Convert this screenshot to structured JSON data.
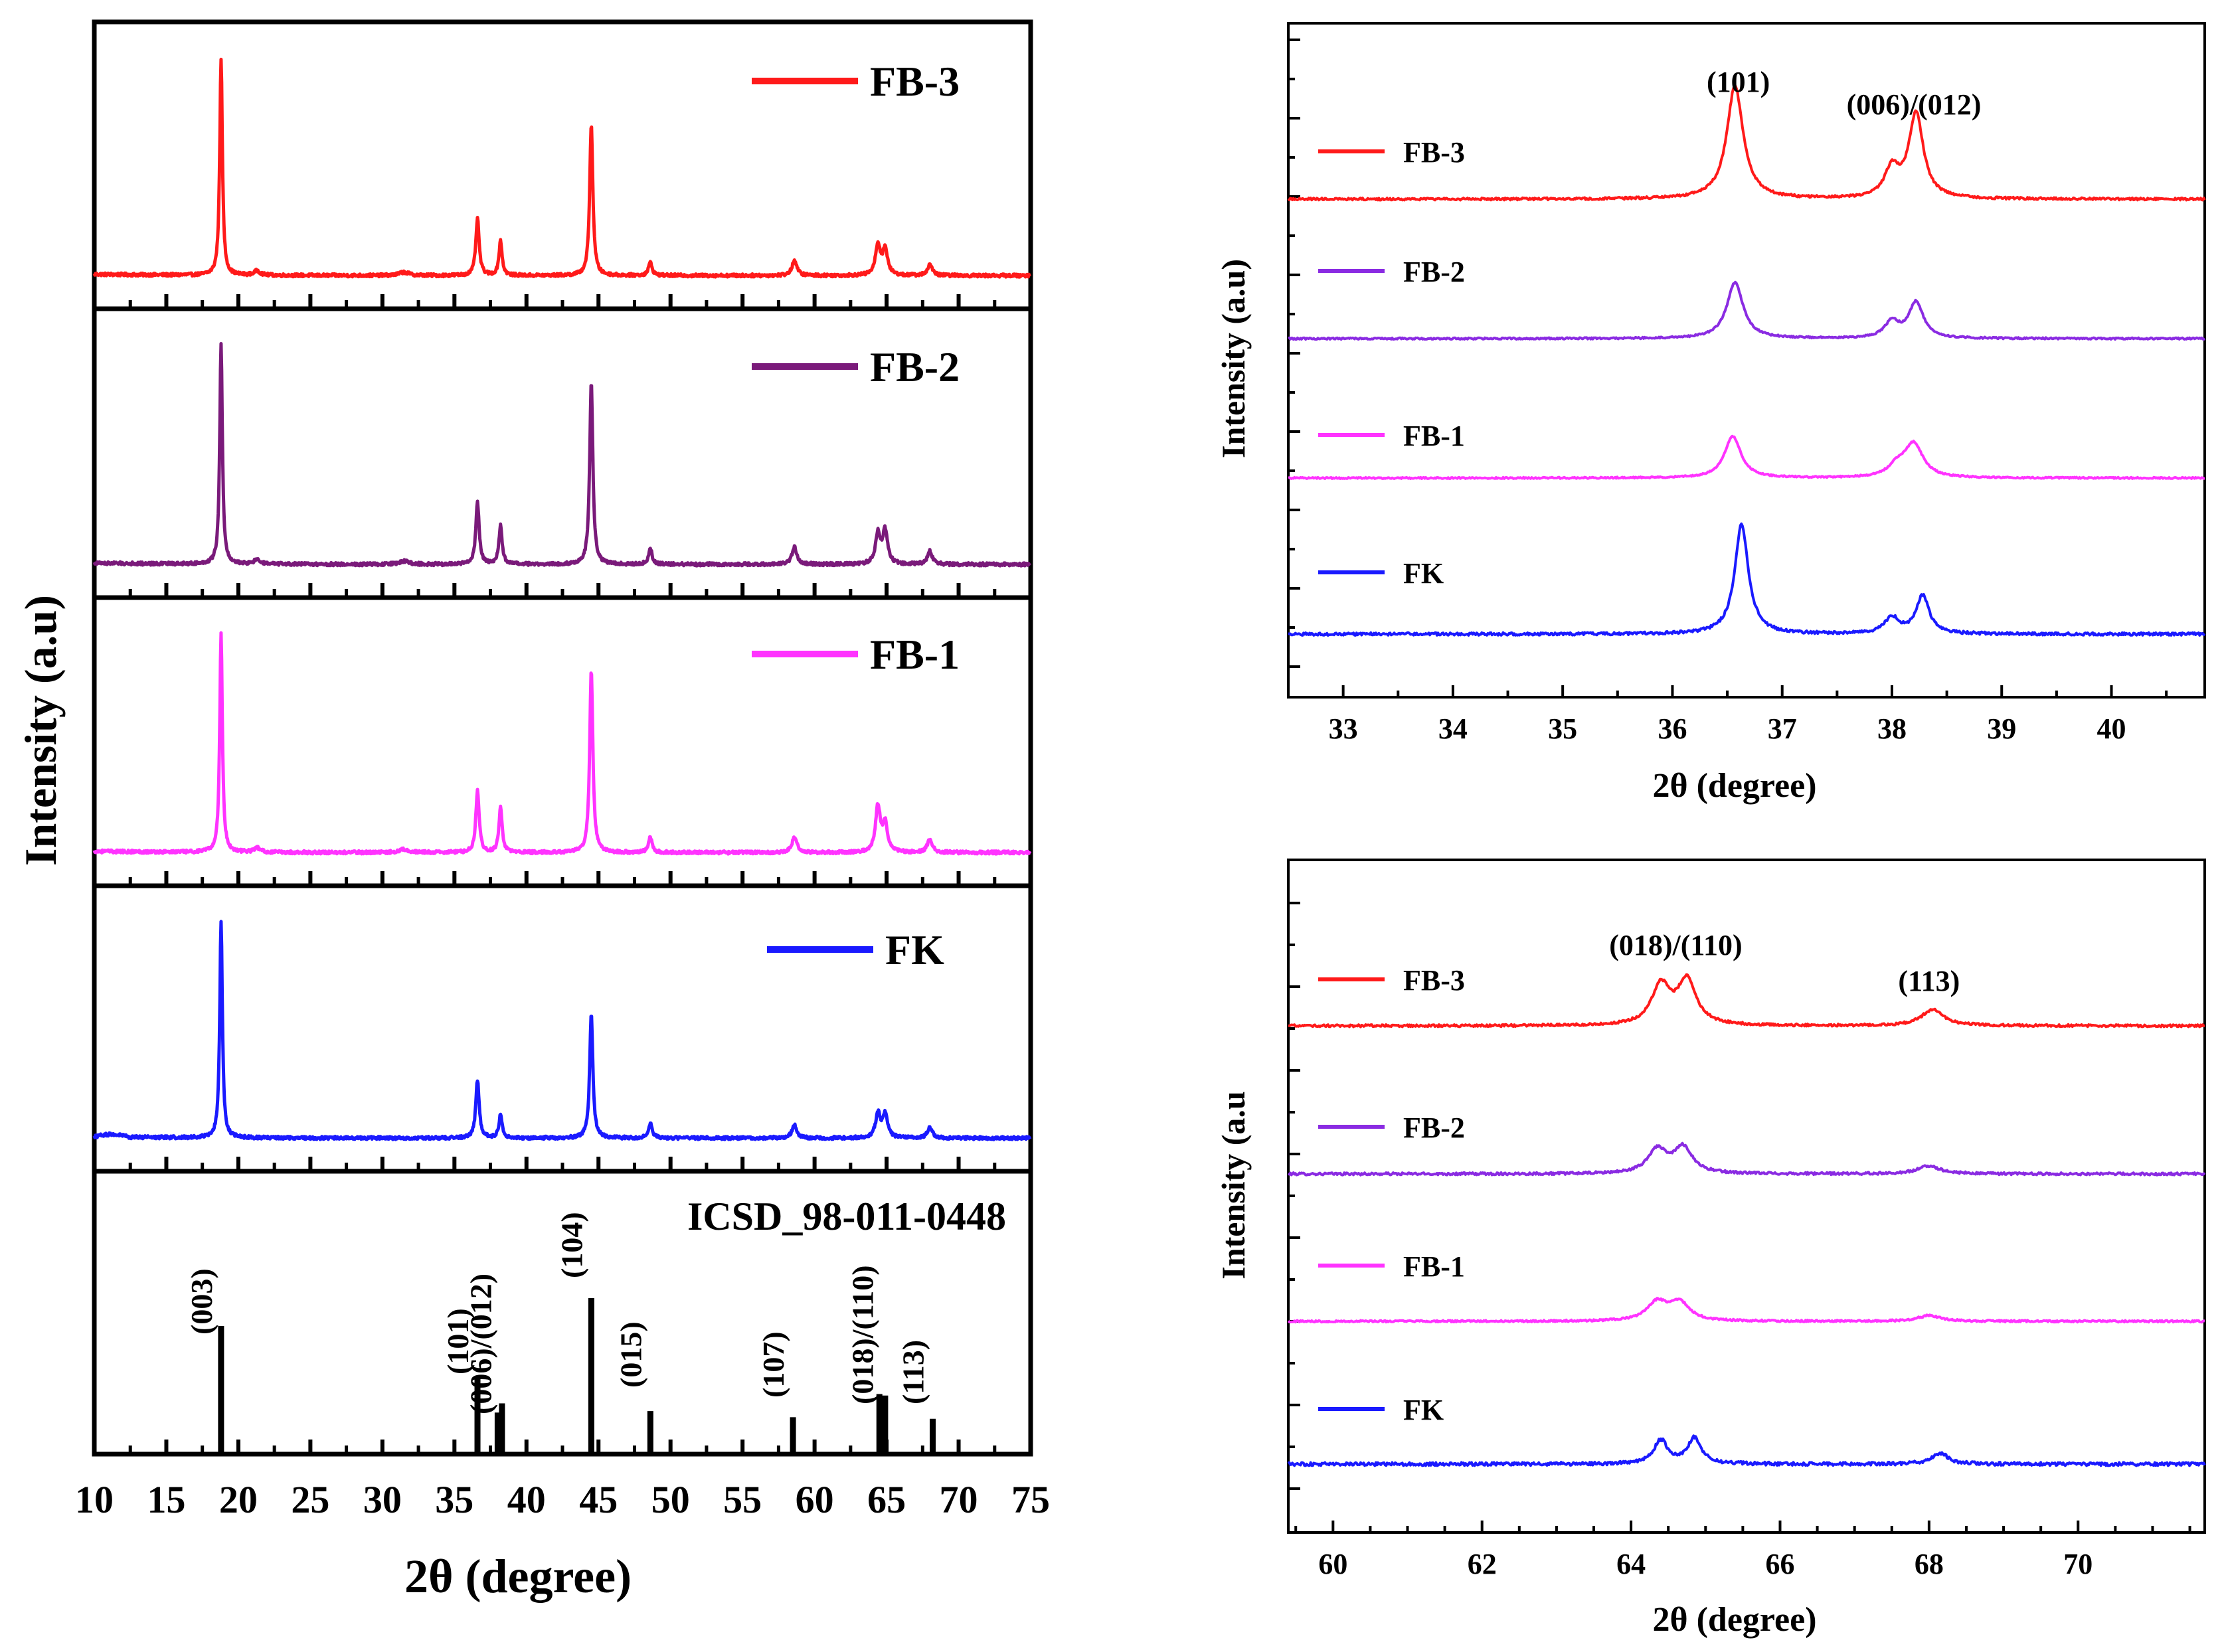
{
  "figure": {
    "left_ylabel": "Intensity (a.u)",
    "left_xlabel": "2θ (degree)",
    "tr_ylabel": "Intensity (a.u)",
    "tr_xlabel": "2θ (degree)",
    "br_ylabel": "Intensity (a.u",
    "br_xlabel": "2θ (degree)"
  },
  "colors": {
    "FB-3": "#ff1a1a",
    "FB-2": "#7a1a7a",
    "FB-1": "#ff33ff",
    "FK": "#1a1aff",
    "FB-2_zoom": "#8a2be2",
    "reference": "#000000"
  },
  "chart_data": [
    {
      "id": "left",
      "type": "line",
      "title": "",
      "xlabel": "2θ (degree)",
      "ylabel": "Intensity (a.u)",
      "xlim": [
        10,
        75
      ],
      "xticks": [
        10,
        15,
        20,
        25,
        30,
        35,
        40,
        45,
        50,
        55,
        60,
        65,
        70,
        75
      ],
      "xtick_labels": [
        "10",
        "15",
        "20",
        "25",
        "30",
        "35",
        "40",
        "45",
        "50",
        "55",
        "60",
        "65",
        "70",
        "75"
      ],
      "series": [
        {
          "name": "FB-3",
          "color": "#ff1a1a",
          "baseline": 0.03,
          "peaks": [
            [
              18.8,
              1.0,
              0.11
            ],
            [
              21.3,
              0.02,
              0.25
            ],
            [
              31.5,
              0.015,
              0.4
            ],
            [
              36.6,
              0.26,
              0.14
            ],
            [
              38.2,
              0.16,
              0.13
            ],
            [
              44.5,
              0.7,
              0.13
            ],
            [
              48.6,
              0.06,
              0.15
            ],
            [
              58.6,
              0.07,
              0.2
            ],
            [
              64.4,
              0.14,
              0.2
            ],
            [
              64.9,
              0.12,
              0.2
            ],
            [
              68.0,
              0.05,
              0.2
            ]
          ]
        },
        {
          "name": "FB-2",
          "color": "#7a1a7a",
          "baseline": 0.03,
          "peaks": [
            [
              18.8,
              1.0,
              0.11
            ],
            [
              21.3,
              0.02,
              0.25
            ],
            [
              31.5,
              0.015,
              0.4
            ],
            [
              36.6,
              0.28,
              0.14
            ],
            [
              38.2,
              0.18,
              0.13
            ],
            [
              44.5,
              0.83,
              0.13
            ],
            [
              48.6,
              0.07,
              0.15
            ],
            [
              58.6,
              0.08,
              0.2
            ],
            [
              64.4,
              0.14,
              0.2
            ],
            [
              64.9,
              0.15,
              0.2
            ],
            [
              68.0,
              0.06,
              0.2
            ]
          ]
        },
        {
          "name": "FB-1",
          "color": "#ff33ff",
          "baseline": 0.03,
          "peaks": [
            [
              18.8,
              1.0,
              0.11
            ],
            [
              21.3,
              0.02,
              0.25
            ],
            [
              31.5,
              0.015,
              0.4
            ],
            [
              36.6,
              0.28,
              0.14
            ],
            [
              38.2,
              0.21,
              0.13
            ],
            [
              44.5,
              0.84,
              0.13
            ],
            [
              48.6,
              0.07,
              0.15
            ],
            [
              58.6,
              0.07,
              0.2
            ],
            [
              64.4,
              0.21,
              0.2
            ],
            [
              64.9,
              0.13,
              0.2
            ],
            [
              68.0,
              0.06,
              0.2
            ]
          ]
        },
        {
          "name": "FK",
          "color": "#1a1aff",
          "baseline": 0.03,
          "peaks": [
            [
              18.8,
              1.0,
              0.11
            ],
            [
              36.6,
              0.27,
              0.14
            ],
            [
              38.2,
              0.11,
              0.13
            ],
            [
              44.5,
              0.58,
              0.13
            ],
            [
              48.6,
              0.07,
              0.15
            ],
            [
              58.6,
              0.06,
              0.2
            ],
            [
              64.4,
              0.11,
              0.2
            ],
            [
              64.9,
              0.11,
              0.2
            ],
            [
              68.0,
              0.05,
              0.2
            ]
          ]
        }
      ],
      "reference": {
        "name": "ICSD_98-011-0448",
        "sticks": [
          [
            18.8,
            0.82
          ],
          [
            36.6,
            0.48
          ],
          [
            38.0,
            0.26
          ],
          [
            38.3,
            0.32
          ],
          [
            44.5,
            1.0
          ],
          [
            48.6,
            0.27
          ],
          [
            58.5,
            0.23
          ],
          [
            64.5,
            0.38
          ],
          [
            64.9,
            0.37
          ],
          [
            68.2,
            0.22
          ]
        ],
        "labels": [
          {
            "text": "(003)",
            "x": 18.8
          },
          {
            "text": "(101)",
            "x": 36.6
          },
          {
            "text": "(006)/(012)",
            "x": 38.2
          },
          {
            "text": "(104)",
            "x": 44.5
          },
          {
            "text": "(015)",
            "x": 48.6
          },
          {
            "text": "(107)",
            "x": 58.5
          },
          {
            "text": "(018)/(110)",
            "x": 64.7
          },
          {
            "text": "(113)",
            "x": 68.2
          }
        ]
      }
    },
    {
      "id": "top-right",
      "type": "line",
      "title": "",
      "xlabel": "2θ (degree)",
      "ylabel": "Intensity (a.u)",
      "xlim": [
        32.5,
        40.85
      ],
      "xticks": [
        33,
        34,
        35,
        36,
        37,
        38,
        39,
        40
      ],
      "xtick_labels": [
        "33",
        "34",
        "35",
        "36",
        "37",
        "38",
        "39",
        "40"
      ],
      "annotations": [
        {
          "text": "(101)",
          "x": 36.6
        },
        {
          "text": "(006)/(012)",
          "x": 38.2
        }
      ],
      "series": [
        {
          "name": "FB-3",
          "color": "#ff1a1a",
          "peaks": [
            [
              36.57,
              1.0,
              0.09
            ],
            [
              38.0,
              0.25,
              0.08
            ],
            [
              38.22,
              0.75,
              0.08
            ]
          ]
        },
        {
          "name": "FB-2",
          "color": "#8a2be2",
          "peaks": [
            [
              36.57,
              0.7,
              0.09
            ],
            [
              38.0,
              0.2,
              0.08
            ],
            [
              38.22,
              0.45,
              0.08
            ]
          ]
        },
        {
          "name": "FB-1",
          "color": "#ff33ff",
          "peaks": [
            [
              36.55,
              0.57,
              0.09
            ],
            [
              38.05,
              0.15,
              0.1
            ],
            [
              38.2,
              0.45,
              0.1
            ]
          ]
        },
        {
          "name": "FK",
          "color": "#1a1aff",
          "peaks": [
            [
              36.63,
              1.0,
              0.075
            ],
            [
              38.0,
              0.15,
              0.08
            ],
            [
              38.28,
              0.35,
              0.07
            ]
          ]
        }
      ]
    },
    {
      "id": "bottom-right",
      "type": "line",
      "title": "",
      "xlabel": "2θ (degree)",
      "ylabel": "Intensity (a.u",
      "xlim": [
        59.4,
        71.7
      ],
      "xticks": [
        60,
        62,
        64,
        66,
        68,
        70
      ],
      "xtick_labels": [
        "60",
        "62",
        "64",
        "66",
        "68",
        "70"
      ],
      "annotations": [
        {
          "text": "(018)/(110)",
          "x": 64.6
        },
        {
          "text": "(113)",
          "x": 68.0
        }
      ],
      "series": [
        {
          "name": "FB-3",
          "color": "#ff1a1a",
          "peaks": [
            [
              64.4,
              0.85,
              0.15
            ],
            [
              64.75,
              0.95,
              0.15
            ],
            [
              68.05,
              0.35,
              0.18
            ]
          ]
        },
        {
          "name": "FB-2",
          "color": "#8a2be2",
          "peaks": [
            [
              64.35,
              0.6,
              0.15
            ],
            [
              64.7,
              0.65,
              0.15
            ],
            [
              68.0,
              0.2,
              0.18
            ]
          ]
        },
        {
          "name": "FB-1",
          "color": "#ff33ff",
          "peaks": [
            [
              64.35,
              0.5,
              0.16
            ],
            [
              64.65,
              0.5,
              0.16
            ],
            [
              68.0,
              0.16,
              0.18
            ]
          ]
        },
        {
          "name": "FK",
          "color": "#1a1aff",
          "peaks": [
            [
              64.4,
              0.65,
              0.11
            ],
            [
              64.85,
              0.7,
              0.11
            ],
            [
              68.15,
              0.3,
              0.13
            ]
          ]
        }
      ]
    }
  ]
}
